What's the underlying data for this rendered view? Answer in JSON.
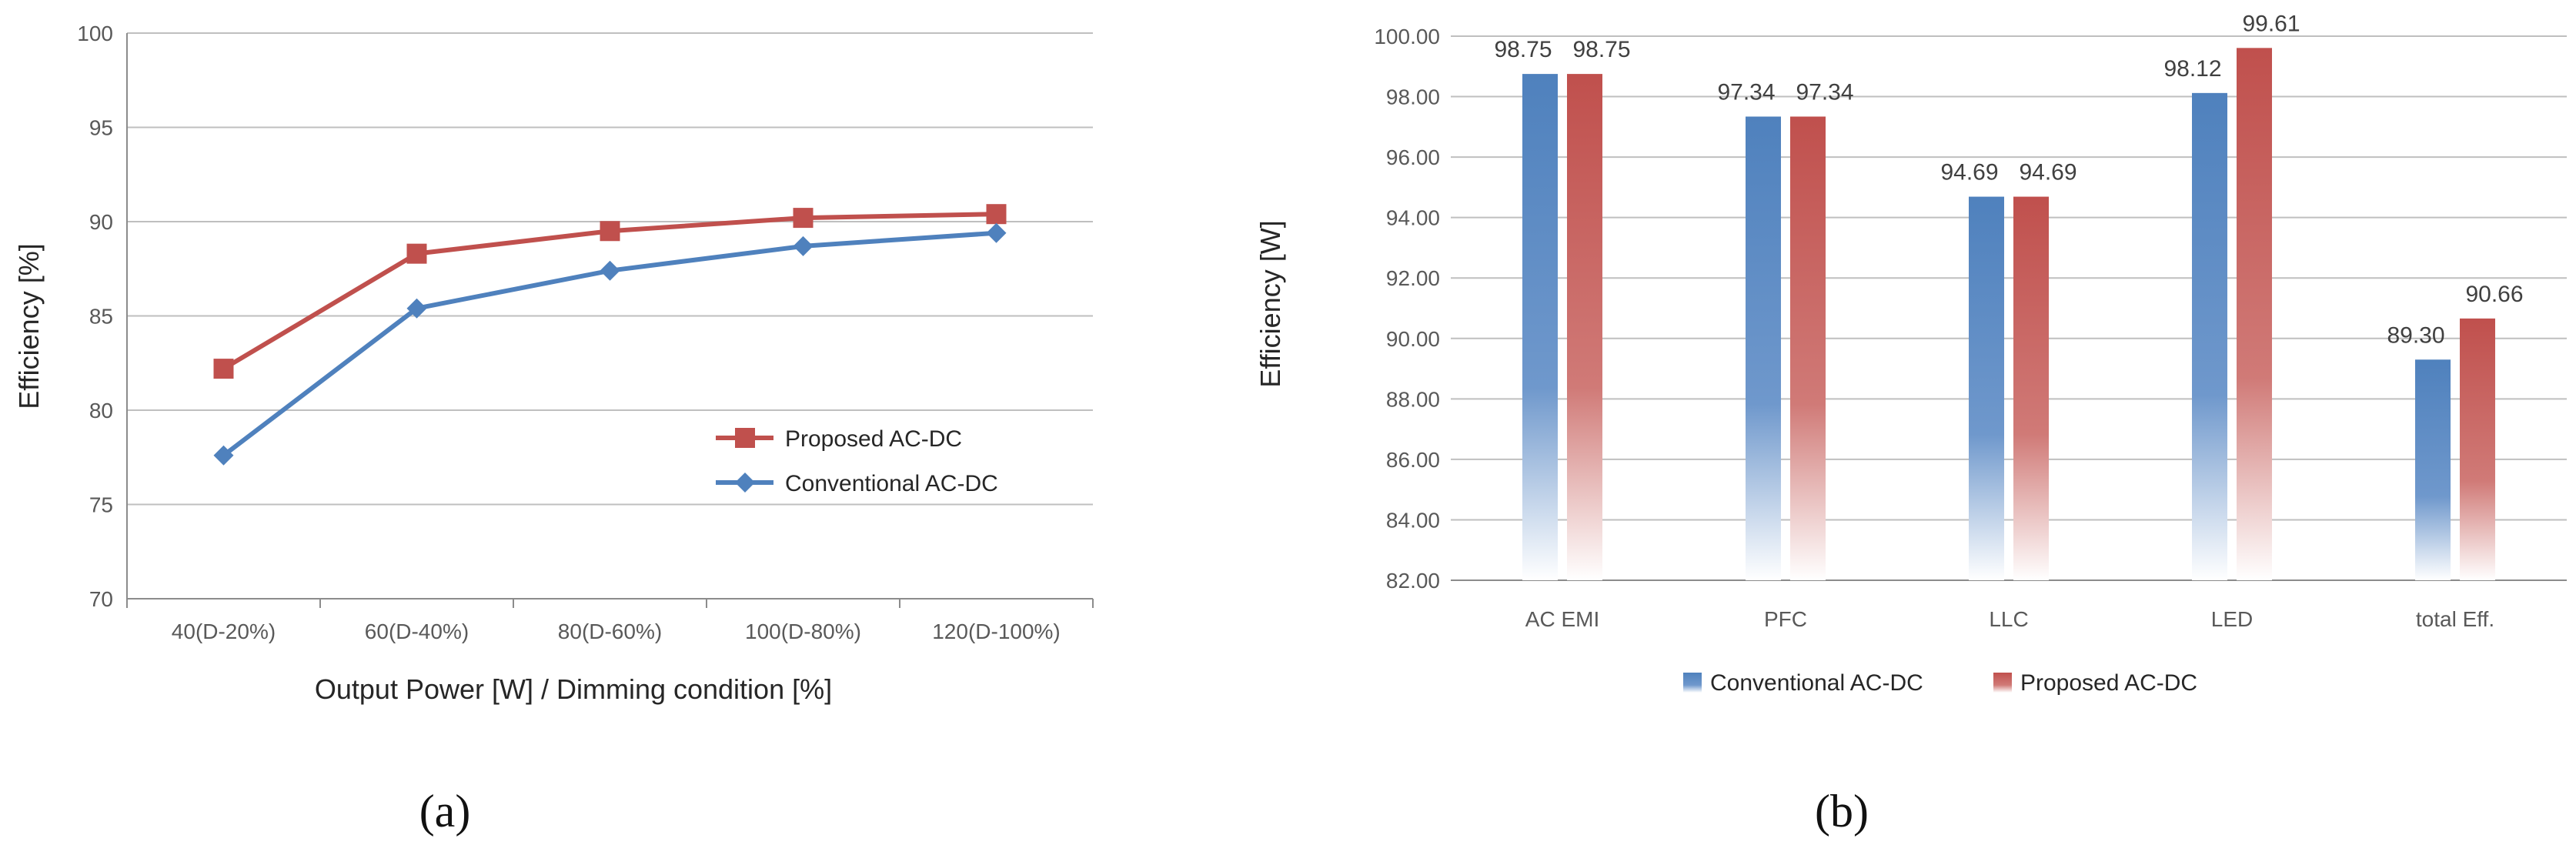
{
  "colors": {
    "proposed": "#c0504d",
    "conventional": "#4f81bd",
    "grid": "#bfbfbf",
    "axis": "#8c8c8c"
  },
  "chart_data": [
    {
      "id": "a",
      "type": "line",
      "caption": "(a)",
      "categories": [
        "40(D-20%)",
        "60(D-40%)",
        "80(D-60%)",
        "100(D-80%)",
        "120(D-100%)"
      ],
      "series": [
        {
          "name": "Proposed AC-DC",
          "marker": "square",
          "color": "#c0504d",
          "values": [
            82.2,
            88.3,
            89.5,
            90.2,
            90.4
          ]
        },
        {
          "name": "Conventional AC-DC",
          "marker": "diamond",
          "color": "#4f81bd",
          "values": [
            77.6,
            85.4,
            87.4,
            88.7,
            89.4
          ]
        }
      ],
      "xlabel": "Output Power [W] / Dimming condition [%]",
      "ylabel": "Efficiency [%]",
      "ylim": [
        70,
        100
      ],
      "yticks": [
        "70",
        "75",
        "80",
        "85",
        "90",
        "95",
        "100"
      ],
      "grid": true,
      "legend": "lower-right"
    },
    {
      "id": "b",
      "type": "bar",
      "caption": "(b)",
      "categories": [
        "AC EMI",
        "PFC",
        "LLC",
        "LED",
        "total Eff."
      ],
      "series": [
        {
          "name": "Conventional AC-DC",
          "color": "#4f81bd",
          "values": [
            98.75,
            97.34,
            94.69,
            98.12,
            89.3
          ],
          "labels": [
            "98.75",
            "97.34",
            "94.69",
            "98.12",
            "89.30"
          ]
        },
        {
          "name": "Proposed AC-DC",
          "color": "#c0504d",
          "values": [
            98.75,
            97.34,
            94.69,
            99.61,
            90.66
          ],
          "labels": [
            "98.75",
            "97.34",
            "94.69",
            "99.61",
            "90.66"
          ]
        }
      ],
      "xlabel": "",
      "ylabel": "Efficiency [W]",
      "ylim": [
        82,
        100
      ],
      "yticks": [
        "82.00",
        "84.00",
        "86.00",
        "88.00",
        "90.00",
        "92.00",
        "94.00",
        "96.00",
        "98.00",
        "100.00"
      ],
      "grid": true,
      "legend": "bottom"
    }
  ]
}
